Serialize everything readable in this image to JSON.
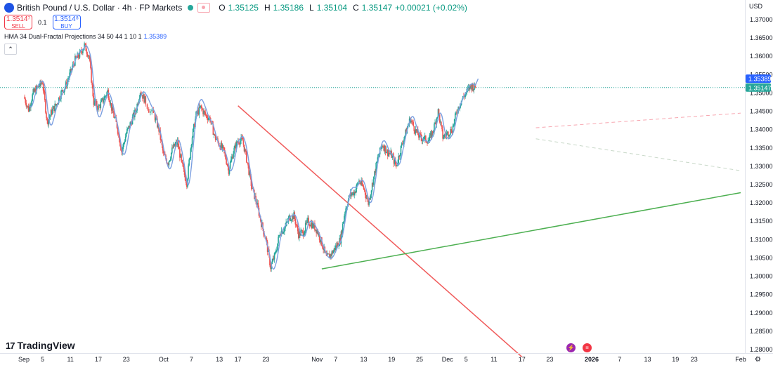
{
  "header": {
    "symbol_title": "British Pound / U.S. Dollar · 4h · FP Markets",
    "ohlc": [
      {
        "label": "O",
        "value": "1.35125"
      },
      {
        "label": "H",
        "value": "1.35186"
      },
      {
        "label": "L",
        "value": "1.35104"
      },
      {
        "label": "C",
        "value": "1.35147"
      },
      {
        "label": "",
        "value": "+0.00021 (+0.02%)"
      }
    ],
    "sell_price": "1.3514⁷",
    "sell_label": "SELL",
    "spread": "0.1",
    "buy_price": "1.3514⁸",
    "buy_label": "BUY",
    "indicator_name": "HMA 34 Dual-Fractal Projections 34 50 44 1 10 1",
    "indicator_value": "1.35389",
    "collapse_icon": "chevron-up-icon"
  },
  "price_axis": {
    "currency": "USD",
    "ticks": [
      "1.37000",
      "1.36500",
      "1.36000",
      "1.35500",
      "1.35000",
      "1.34500",
      "1.34000",
      "1.33500",
      "1.33000",
      "1.32500",
      "1.32000",
      "1.31500",
      "1.31000",
      "1.30500",
      "1.30000",
      "1.29500",
      "1.29000",
      "1.28500",
      "1.28000"
    ],
    "hma_tag": "1.35389",
    "price_tag": "1.35147",
    "hma_tag_color": "#2962ff",
    "price_tag_color": "#26a69a"
  },
  "time_axis": {
    "labels": [
      {
        "text": "Sep",
        "bold": false
      },
      {
        "text": "5",
        "bold": false
      },
      {
        "text": "11",
        "bold": false
      },
      {
        "text": "17",
        "bold": false
      },
      {
        "text": "23",
        "bold": false
      },
      {
        "text": "Oct",
        "bold": false
      },
      {
        "text": "7",
        "bold": false
      },
      {
        "text": "13",
        "bold": false
      },
      {
        "text": "17",
        "bold": false
      },
      {
        "text": "23",
        "bold": false
      },
      {
        "text": "Nov",
        "bold": false
      },
      {
        "text": "7",
        "bold": false
      },
      {
        "text": "13",
        "bold": false
      },
      {
        "text": "19",
        "bold": false
      },
      {
        "text": "25",
        "bold": false
      },
      {
        "text": "Dec",
        "bold": false
      },
      {
        "text": "5",
        "bold": false
      },
      {
        "text": "11",
        "bold": false
      },
      {
        "text": "17",
        "bold": false
      },
      {
        "text": "23",
        "bold": false
      },
      {
        "text": "2026",
        "bold": true
      },
      {
        "text": "7",
        "bold": false
      },
      {
        "text": "13",
        "bold": false
      },
      {
        "text": "19",
        "bold": false
      },
      {
        "text": "23",
        "bold": false
      },
      {
        "text": "Feb",
        "bold": false
      }
    ]
  },
  "branding": {
    "logo_text": "TradingView",
    "logo_icon": "tradingview-logo-icon"
  },
  "events": [
    {
      "icon": "lightning-icon",
      "glyph": "⚡"
    },
    {
      "icon": "us-flag-icon",
      "glyph": "≡"
    }
  ],
  "settings_icon": "gear-icon",
  "colors": {
    "up": "#26a69a",
    "down": "#ef5350",
    "hma": "#7b9fe0",
    "trend_down": "#f05a5a",
    "trend_up": "#4caf50"
  },
  "chart_data": {
    "type": "candlestick",
    "timeframe": "4h",
    "ylim": [
      1.2775,
      1.3725
    ],
    "y_scale": "linear",
    "grid": false,
    "start_date": "2025-09-01",
    "end_date": "2025-12-26",
    "period_end_date": "2026-02-02",
    "hma_period": 34,
    "closes_daily": [
      1.349,
      1.3455,
      1.35,
      1.3515,
      1.353,
      1.342,
      1.345,
      1.347,
      1.35,
      1.352,
      1.3555,
      1.359,
      1.3605,
      1.363,
      1.36,
      1.3475,
      1.346,
      1.348,
      1.3505,
      1.345,
      1.341,
      1.334,
      1.339,
      1.342,
      1.345,
      1.3505,
      1.348,
      1.345,
      1.344,
      1.34,
      1.333,
      1.331,
      1.335,
      1.3365,
      1.33,
      1.3255,
      1.337,
      1.344,
      1.346,
      1.344,
      1.343,
      1.338,
      1.336,
      1.334,
      1.329,
      1.334,
      1.337,
      1.337,
      1.331,
      1.324,
      1.32,
      1.3145,
      1.31,
      1.3025,
      1.306,
      1.312,
      1.313,
      1.316,
      1.3165,
      1.3115,
      1.312,
      1.315,
      1.314,
      1.3125,
      1.309,
      1.305,
      1.306,
      1.308,
      1.31,
      1.318,
      1.322,
      1.323,
      1.326,
      1.324,
      1.32,
      1.326,
      1.332,
      1.336,
      1.334,
      1.333,
      1.33,
      1.335,
      1.339,
      1.343,
      1.34,
      1.338,
      1.3375,
      1.337,
      1.34,
      1.345,
      1.338,
      1.339,
      1.34,
      1.345,
      1.348,
      1.35,
      1.352,
      1.3514
    ],
    "hma_end": 1.35389,
    "last_price": 1.35147,
    "trendlines": [
      {
        "name": "",
        "color": "#f05a5a",
        "style": "solid",
        "p1": {
          "date": "2025-10-17",
          "price": 1.3465
        },
        "p2": {
          "date": "2025-12-17",
          "price": 1.278
        }
      },
      {
        "name": "",
        "color": "#4caf50",
        "style": "solid",
        "p1": {
          "date": "2025-11-04",
          "price": 1.302
        },
        "p2": {
          "date": "2026-02-02",
          "price": 1.3228
        }
      },
      {
        "name": "",
        "color": "#f7a6b0",
        "style": "dashed",
        "p1": {
          "date": "2025-12-20",
          "price": 1.3405
        },
        "p2": {
          "date": "2026-02-02",
          "price": 1.3445
        }
      },
      {
        "name": "",
        "color": "#c8d8c8",
        "style": "dashed",
        "p1": {
          "date": "2025-12-20",
          "price": 1.3375
        },
        "p2": {
          "date": "2026-02-02",
          "price": 1.3288
        }
      }
    ]
  }
}
